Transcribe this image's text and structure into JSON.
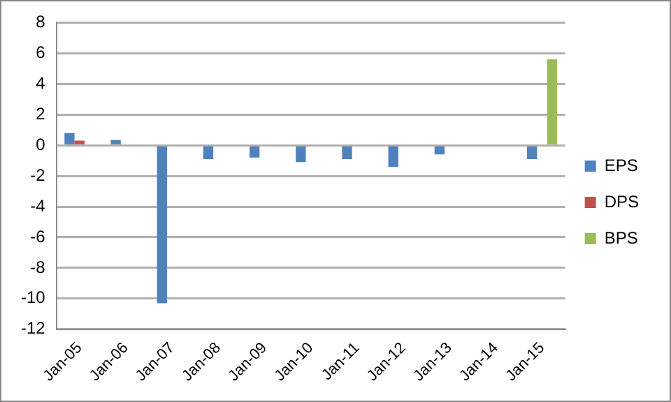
{
  "chart_data": {
    "type": "bar",
    "categories": [
      "Jan-05",
      "Jan-06",
      "Jan-07",
      "Jan-08",
      "Jan-09",
      "Jan-10",
      "Jan-11",
      "Jan-12",
      "Jan-13",
      "Jan-14",
      "Jan-15"
    ],
    "series": [
      {
        "name": "EPS",
        "color": "#4f81bd",
        "values": [
          0.8,
          0.35,
          -10.3,
          -0.9,
          -0.8,
          -1.1,
          -0.9,
          -1.4,
          -0.6,
          null,
          -0.9
        ]
      },
      {
        "name": "DPS",
        "color": "#c0504d",
        "values": [
          0.3,
          null,
          null,
          null,
          null,
          null,
          null,
          null,
          null,
          null,
          null
        ]
      },
      {
        "name": "BPS",
        "color": "#9bbb59",
        "values": [
          null,
          null,
          null,
          null,
          null,
          null,
          null,
          null,
          null,
          null,
          5.6
        ]
      }
    ],
    "ylim": [
      -12,
      8
    ],
    "yticks": [
      -12,
      -10,
      -8,
      -6,
      -4,
      -2,
      0,
      2,
      4,
      6,
      8
    ],
    "grid": "y",
    "legend": "right"
  }
}
